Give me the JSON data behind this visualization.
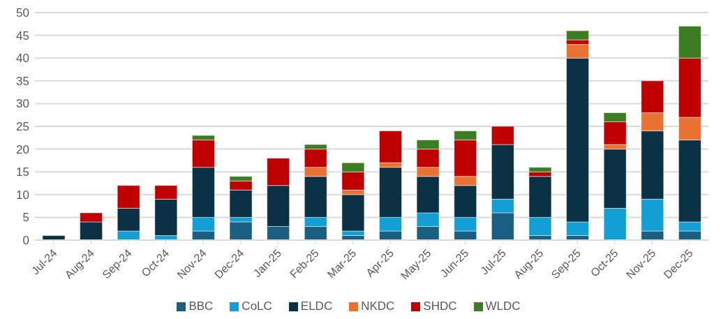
{
  "chart_data": {
    "type": "bar",
    "stacked": true,
    "categories": [
      "Jul-24",
      "Aug-24",
      "Sep-24",
      "Oct-24",
      "Nov-24",
      "Dec-24",
      "Jan-25",
      "Feb-25",
      "Mar-25",
      "Apr-25",
      "May-25",
      "Jun-25",
      "Jul-25",
      "Aug-25",
      "Sep-25",
      "Oct-25",
      "Nov-25",
      "Dec-25"
    ],
    "series": [
      {
        "name": "BBC",
        "color": "#1a5e82",
        "values": [
          0,
          0,
          0,
          0,
          2,
          4,
          3,
          3,
          1,
          2,
          3,
          2,
          6,
          1,
          1,
          0,
          2,
          2
        ]
      },
      {
        "name": "CoLC",
        "color": "#129fd6",
        "values": [
          0,
          0,
          2,
          1,
          3,
          1,
          0,
          2,
          1,
          3,
          3,
          3,
          3,
          4,
          3,
          7,
          7,
          2
        ]
      },
      {
        "name": "ELDC",
        "color": "#0c3144",
        "values": [
          1,
          4,
          5,
          8,
          11,
          6,
          9,
          9,
          8,
          11,
          8,
          7,
          12,
          9,
          36,
          13,
          15,
          18
        ]
      },
      {
        "name": "NKDC",
        "color": "#e97132",
        "values": [
          0,
          0,
          0,
          0,
          0,
          0,
          0,
          2,
          1,
          1,
          2,
          2,
          0,
          0,
          3,
          1,
          4,
          5
        ]
      },
      {
        "name": "SHDC",
        "color": "#c00000",
        "values": [
          0,
          2,
          5,
          3,
          6,
          2,
          6,
          4,
          4,
          7,
          4,
          8,
          4,
          1,
          1,
          5,
          7,
          13
        ]
      },
      {
        "name": "WLDC",
        "color": "#3c7d22",
        "values": [
          0,
          0,
          0,
          0,
          1,
          1,
          0,
          1,
          2,
          0,
          2,
          2,
          0,
          1,
          2,
          2,
          0,
          7
        ]
      }
    ],
    "ylim": [
      0,
      50
    ],
    "yticks": [
      0,
      5,
      10,
      15,
      20,
      25,
      30,
      35,
      40,
      45,
      50
    ],
    "grid": "y",
    "legend": "bottom"
  }
}
